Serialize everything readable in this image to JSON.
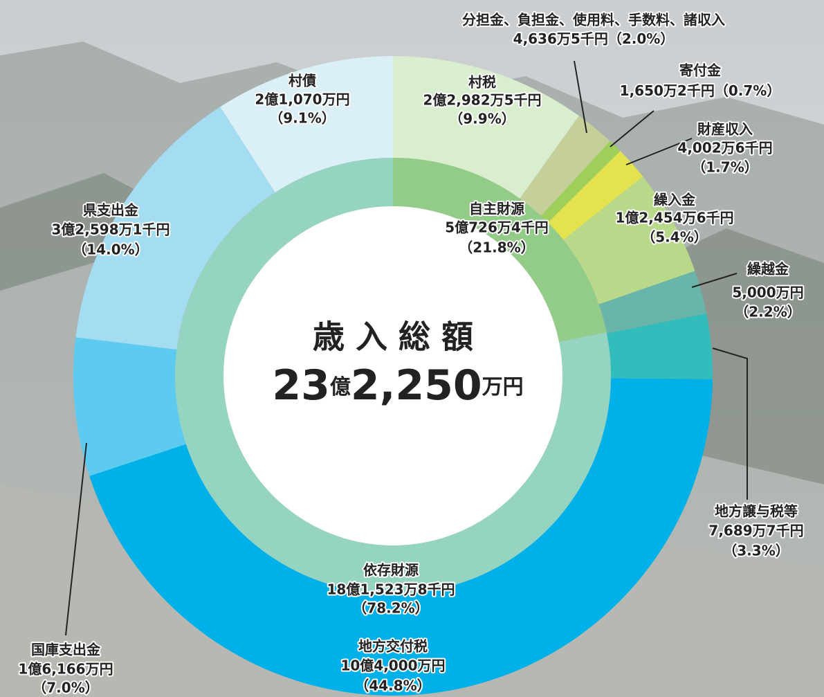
{
  "chart_data": {
    "type": "donut",
    "center_title": "歳 入 総 額",
    "center_total": [
      "23",
      "億",
      "2,250",
      "万円"
    ],
    "inner": {
      "categories": [
        "自主財源",
        "依存財源"
      ],
      "amounts": [
        "5億726万4千円",
        "18億1,523万8千円"
      ],
      "values": [
        21.8,
        78.2
      ],
      "value_labels": [
        "（21.8%）",
        "（78.2%）"
      ],
      "colors": [
        "#93cc88",
        "#96d4c2"
      ]
    },
    "outer": {
      "categories": [
        "村税",
        "分担金、負担金、使用料、手数料、諸収入",
        "寄付金",
        "財産収入",
        "繰入金",
        "繰越金",
        "地方譲与税等",
        "地方交付税",
        "国庫支出金",
        "県支出金",
        "村債"
      ],
      "amounts": [
        "2億2,982万5千円",
        "4,636万5千円",
        "1,650万2千円",
        "4,002万6千円",
        "1億2,454万6千円",
        "5,000万円",
        "7,689万7千円",
        "10億4,000万円",
        "1億6,166万円",
        "3億2,598万1千円",
        "2億1,070万円"
      ],
      "values": [
        9.9,
        2.0,
        0.7,
        1.7,
        5.4,
        2.2,
        3.3,
        44.8,
        7.0,
        14.0,
        9.1
      ],
      "value_labels": [
        "（9.9%）",
        "（2.0%）",
        "（0.7%）",
        "（1.7%）",
        "（5.4%）",
        "（2.2%）",
        "（3.3%）",
        "（44.8%）",
        "（7.0%）",
        "（14.0%）",
        "（9.1%）"
      ],
      "colors": [
        "#d9edcf",
        "#c5cf9a",
        "#9ecf5a",
        "#e3e34f",
        "#b8d98a",
        "#6ab5aa",
        "#33bcbc",
        "#00b0e8",
        "#5ccbef",
        "#a4dcf2",
        "#daeff6"
      ]
    }
  }
}
